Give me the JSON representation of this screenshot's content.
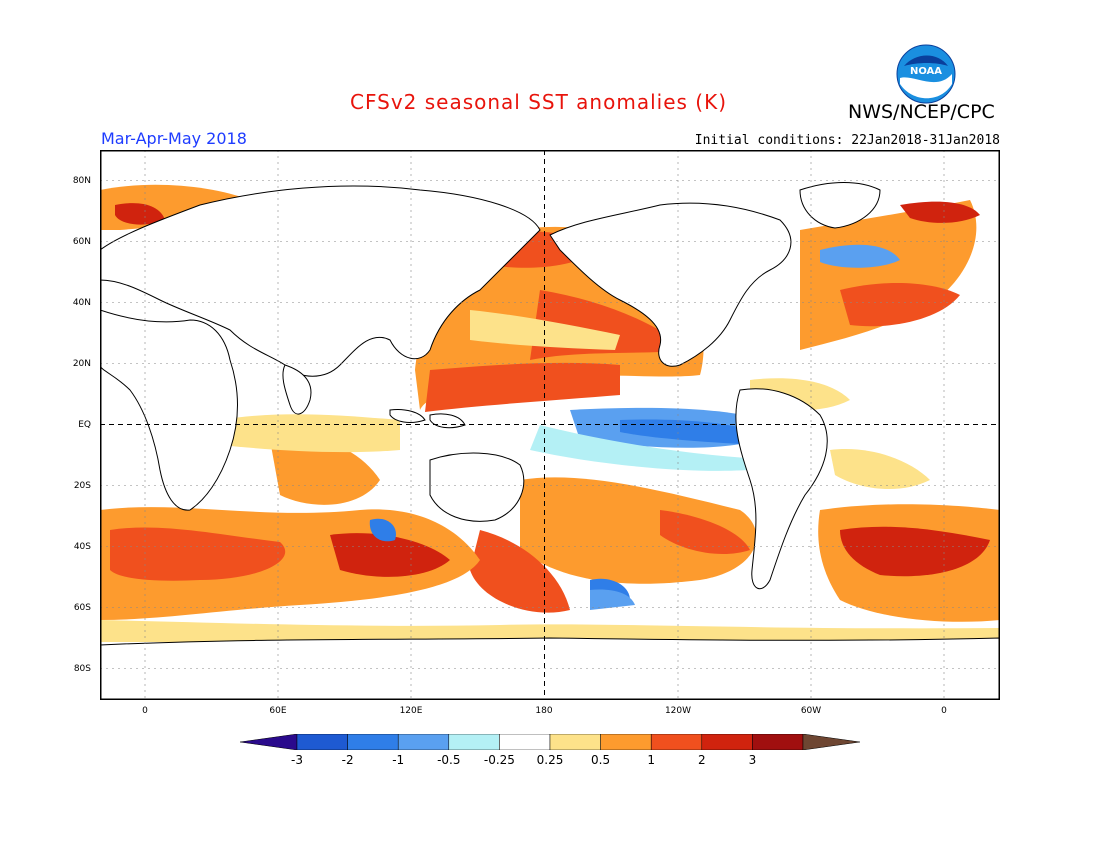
{
  "title": "CFSv2 seasonal SST anomalies (K)",
  "agency": "NWS/NCEP/CPC",
  "logo_text": "NOAA",
  "season": "Mar-Apr-May 2018",
  "initial_conditions": "Initial conditions: 22Jan2018-31Jan2018",
  "lat_labels": [
    "80N",
    "60N",
    "40N",
    "20N",
    "EQ",
    "20S",
    "40S",
    "60S",
    "80S"
  ],
  "lon_labels": [
    "0",
    "60E",
    "120E",
    "180",
    "120W",
    "60W",
    "0"
  ],
  "colorbar": {
    "labels": [
      "-3",
      "-2",
      "-1",
      "-0.5",
      "-0.25",
      "0.25",
      "0.5",
      "1",
      "2",
      "3"
    ],
    "colors": [
      "#2a0a8c",
      "#1e5ad2",
      "#2f7ee8",
      "#5aa0f0",
      "#b4f0f5",
      "#ffffff",
      "#fde28a",
      "#fd9b2e",
      "#f0501e",
      "#d0230e",
      "#a00f0f",
      "#6e4632"
    ]
  },
  "palette": {
    "ocean_neutral": "#ffffff",
    "land": "#ffffff",
    "coast": "#000000"
  }
}
